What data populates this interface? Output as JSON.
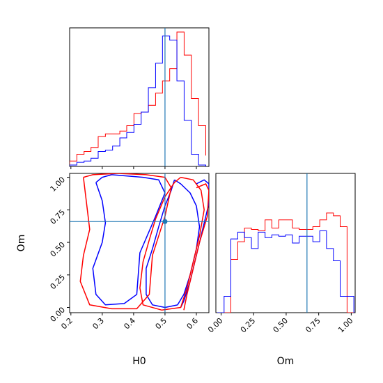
{
  "chart_data": [
    {
      "panel": "H0 marginal",
      "type": "histogram",
      "x": [
        0.196,
        0.219,
        0.242,
        0.264,
        0.287,
        0.31,
        0.333,
        0.356,
        0.378,
        0.401,
        0.424,
        0.447,
        0.47,
        0.492,
        0.515,
        0.538,
        0.561,
        0.584,
        0.607,
        0.63
      ],
      "xlim": [
        0.196,
        0.64
      ],
      "truth": 0.5,
      "series": [
        {
          "color": "#ff0000",
          "values": [
            0.04,
            0.09,
            0.11,
            0.14,
            0.22,
            0.24,
            0.24,
            0.26,
            0.3,
            0.39,
            0.4,
            0.45,
            0.54,
            0.63,
            0.72,
            0.99,
            0.82,
            0.5,
            0.3,
            0.08
          ]
        },
        {
          "color": "#0000ff",
          "values": [
            0.01,
            0.03,
            0.04,
            0.06,
            0.11,
            0.12,
            0.15,
            0.21,
            0.25,
            0.31,
            0.4,
            0.58,
            0.76,
            0.96,
            0.93,
            0.63,
            0.34,
            0.09,
            0.01,
            0.0
          ]
        }
      ]
    },
    {
      "panel": "Om marginal",
      "type": "histogram",
      "x": [
        -0.03,
        0.023,
        0.075,
        0.128,
        0.18,
        0.233,
        0.285,
        0.338,
        0.39,
        0.443,
        0.495,
        0.548,
        0.6,
        0.653,
        0.705,
        0.758,
        0.81,
        0.863,
        0.915,
        0.968,
        1.02
      ],
      "xlim": [
        -0.04,
        1.03
      ],
      "truth": 0.66,
      "series": [
        {
          "color": "#ff0000",
          "values": [
            0.0,
            0.0,
            0.39,
            0.52,
            0.62,
            0.61,
            0.6,
            0.68,
            0.62,
            0.68,
            0.68,
            0.62,
            0.61,
            0.61,
            0.63,
            0.68,
            0.73,
            0.71,
            0.63,
            0.0
          ]
        },
        {
          "color": "#0000ff",
          "values": [
            0.0,
            0.12,
            0.54,
            0.59,
            0.55,
            0.47,
            0.59,
            0.55,
            0.57,
            0.56,
            0.57,
            0.51,
            0.56,
            0.56,
            0.52,
            0.6,
            0.47,
            0.38,
            0.12,
            0.12
          ]
        }
      ]
    },
    {
      "panel": "H0 vs Om contours",
      "type": "contour",
      "xlim": [
        0.196,
        0.64
      ],
      "ylim": [
        -0.04,
        1.03
      ],
      "truth": {
        "x": 0.5,
        "y": 0.66
      },
      "series": [
        {
          "color": "#0000ff",
          "contours": [
            [
              [
                0.28,
                0.96
              ],
              [
                0.3,
                1.0
              ],
              [
                0.33,
                1.02
              ],
              [
                0.38,
                1.01
              ],
              [
                0.43,
                1.0
              ],
              [
                0.48,
                0.98
              ],
              [
                0.5,
                0.88
              ],
              [
                0.47,
                0.7
              ],
              [
                0.42,
                0.42
              ],
              [
                0.41,
                0.1
              ],
              [
                0.37,
                0.03
              ],
              [
                0.31,
                0.02
              ],
              [
                0.28,
                0.1
              ],
              [
                0.27,
                0.3
              ],
              [
                0.3,
                0.5
              ],
              [
                0.31,
                0.65
              ],
              [
                0.3,
                0.82
              ],
              [
                0.28,
                0.96
              ]
            ],
            [
              [
                0.53,
                0.98
              ],
              [
                0.55,
                0.95
              ],
              [
                0.58,
                0.88
              ],
              [
                0.6,
                0.78
              ],
              [
                0.61,
                0.62
              ],
              [
                0.6,
                0.45
              ],
              [
                0.58,
                0.25
              ],
              [
                0.56,
                0.1
              ],
              [
                0.54,
                0.02
              ],
              [
                0.5,
                0.0
              ],
              [
                0.46,
                0.02
              ],
              [
                0.44,
                0.1
              ],
              [
                0.44,
                0.3
              ],
              [
                0.46,
                0.45
              ],
              [
                0.48,
                0.62
              ],
              [
                0.5,
                0.78
              ],
              [
                0.52,
                0.9
              ],
              [
                0.53,
                0.98
              ]
            ],
            [
              [
                0.6,
                0.95
              ],
              [
                0.625,
                0.98
              ],
              [
                0.64,
                0.95
              ],
              [
                0.64,
                0.8
              ],
              [
                0.62,
                0.6
              ],
              [
                0.6,
                0.4
              ],
              [
                0.58,
                0.2
              ],
              [
                0.56,
                0.05
              ],
              [
                0.55,
                0.0
              ]
            ]
          ]
        },
        {
          "color": "#ff0000",
          "contours": [
            [
              [
                0.24,
                1.0
              ],
              [
                0.27,
                1.02
              ],
              [
                0.35,
                1.03
              ],
              [
                0.44,
                1.02
              ],
              [
                0.5,
                1.0
              ],
              [
                0.52,
                0.92
              ],
              [
                0.5,
                0.7
              ],
              [
                0.46,
                0.4
              ],
              [
                0.45,
                0.1
              ],
              [
                0.41,
                -0.01
              ],
              [
                0.33,
                -0.01
              ],
              [
                0.26,
                0.02
              ],
              [
                0.23,
                0.2
              ],
              [
                0.24,
                0.4
              ],
              [
                0.26,
                0.6
              ],
              [
                0.25,
                0.8
              ],
              [
                0.24,
                1.0
              ]
            ],
            [
              [
                0.55,
                1.0
              ],
              [
                0.59,
                0.98
              ],
              [
                0.615,
                0.9
              ],
              [
                0.625,
                0.75
              ],
              [
                0.61,
                0.55
              ],
              [
                0.59,
                0.35
              ],
              [
                0.57,
                0.15
              ],
              [
                0.55,
                0.0
              ],
              [
                0.49,
                -0.02
              ],
              [
                0.43,
                0.02
              ],
              [
                0.42,
                0.15
              ],
              [
                0.43,
                0.35
              ],
              [
                0.45,
                0.52
              ],
              [
                0.47,
                0.68
              ],
              [
                0.5,
                0.85
              ],
              [
                0.53,
                0.96
              ],
              [
                0.55,
                1.0
              ]
            ],
            [
              [
                0.6,
                0.92
              ],
              [
                0.63,
                0.95
              ],
              [
                0.64,
                0.9
              ],
              [
                0.635,
                0.7
              ],
              [
                0.61,
                0.5
              ],
              [
                0.59,
                0.3
              ],
              [
                0.57,
                0.1
              ],
              [
                0.56,
                -0.02
              ]
            ]
          ]
        }
      ]
    }
  ],
  "axes": {
    "x_label": "H0",
    "y_label": "Om",
    "om_x_label": "Om",
    "h0_ticks": [
      "0.2",
      "0.3",
      "0.4",
      "0.5",
      "0.6"
    ],
    "om_ticks": [
      "0.00",
      "0.25",
      "0.50",
      "0.75",
      "1.00"
    ]
  },
  "colors": {
    "truth_line": "#1f77b4",
    "series_a": "#ff0000",
    "series_b": "#0000ff"
  }
}
